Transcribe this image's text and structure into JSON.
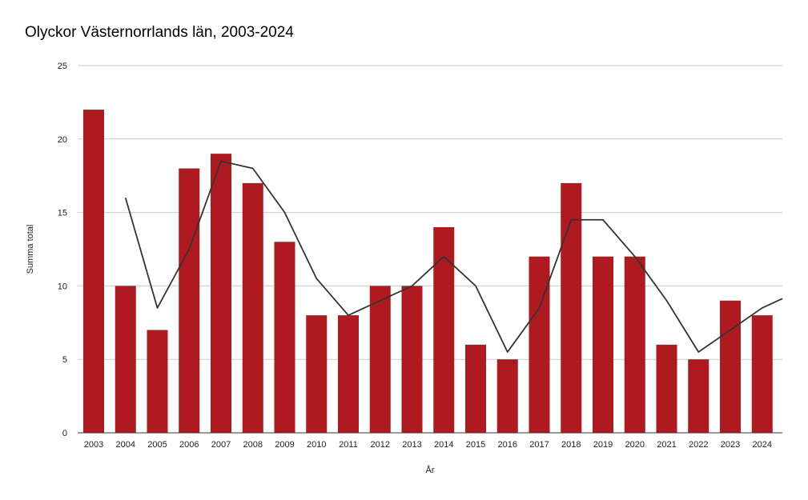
{
  "title": "Olyckor Västernorrlands län, 2003-2024",
  "chart_data": {
    "type": "bar",
    "title": "Olyckor Västernorrlands län, 2003-2024",
    "xlabel": "År",
    "ylabel": "Summa total",
    "ylim": [
      0,
      25
    ],
    "yticks": [
      0,
      5,
      10,
      15,
      20,
      25
    ],
    "grid": true,
    "categories": [
      "2003",
      "2004",
      "2005",
      "2006",
      "2007",
      "2008",
      "2009",
      "2010",
      "2011",
      "2012",
      "2013",
      "2014",
      "2015",
      "2016",
      "2017",
      "2018",
      "2019",
      "2020",
      "2021",
      "2022",
      "2023",
      "2024"
    ],
    "series": [
      {
        "type": "bar",
        "color": "#ae1a1f",
        "values": [
          22,
          10,
          7,
          18,
          19,
          17,
          13,
          8,
          8,
          10,
          10,
          14,
          6,
          5,
          12,
          17,
          12,
          12,
          6,
          5,
          9,
          8
        ]
      },
      {
        "type": "line",
        "color": "#333333",
        "values": [
          null,
          16,
          8.5,
          12.5,
          18.5,
          18,
          15,
          10.5,
          8,
          9,
          10,
          12,
          10,
          5.5,
          8.5,
          14.5,
          14.5,
          12,
          9,
          5.5,
          7,
          8.5
        ]
      }
    ],
    "trend_extension_value": 9.5
  }
}
